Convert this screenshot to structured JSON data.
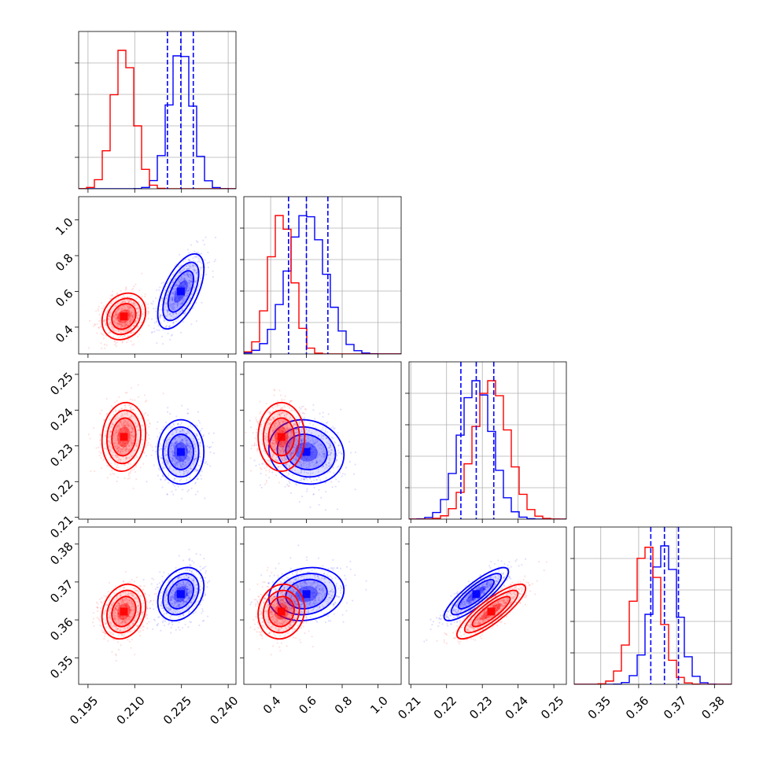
{
  "chart_data": {
    "type": "corner",
    "colors": {
      "blue": "#0000ff",
      "red": "#ff0000",
      "grid": "#b0b0b0"
    },
    "parameters": [
      {
        "ticks": [
          "0.195",
          "0.210",
          "0.225",
          "0.240"
        ],
        "tick_values": [
          0.195,
          0.21,
          0.225,
          0.24
        ],
        "range": [
          0.192,
          0.2425
        ]
      },
      {
        "ticks": [
          "0.4",
          "0.6",
          "0.8",
          "1.0"
        ],
        "tick_values": [
          0.4,
          0.6,
          0.8,
          1.0
        ],
        "range": [
          0.25,
          1.13
        ]
      },
      {
        "ticks": [
          "0.21",
          "0.22",
          "0.23",
          "0.24",
          "0.25"
        ],
        "tick_values": [
          0.21,
          0.22,
          0.23,
          0.24,
          0.25
        ],
        "range": [
          0.2095,
          0.2535
        ]
      },
      {
        "ticks": [
          "0.35",
          "0.36",
          "0.37",
          "0.38"
        ],
        "tick_values": [
          0.35,
          0.36,
          0.37,
          0.38
        ],
        "range": [
          0.343,
          0.3845
        ]
      }
    ],
    "series": [
      {
        "color": "blue",
        "mean": [
          0.2248,
          0.6,
          0.2283,
          0.3668
        ],
        "std": [
          0.0037,
          0.105,
          0.0045,
          0.0035
        ],
        "quantiles": [
          [
            0.2205,
            0.2248,
            0.2288
          ],
          [
            0.5,
            0.6,
            0.72
          ],
          [
            0.224,
            0.2283,
            0.2332
          ],
          [
            0.3632,
            0.3668,
            0.3705
          ]
        ],
        "corr": {
          "0-1": 0.6,
          "0-2": 0.0,
          "0-3": 0.3,
          "1-2": -0.1,
          "1-3": 0.15,
          "2-3": 0.85
        }
      },
      {
        "color": "red",
        "mean": [
          0.2065,
          0.46,
          0.2325,
          0.3622
        ],
        "std": [
          0.0035,
          0.065,
          0.0048,
          0.0036
        ],
        "corr": {
          "0-1": 0.2,
          "0-2": 0.1,
          "0-3": 0.2,
          "1-2": 0.0,
          "1-3": 0.1,
          "2-3": 0.85
        }
      }
    ],
    "grid": true
  }
}
